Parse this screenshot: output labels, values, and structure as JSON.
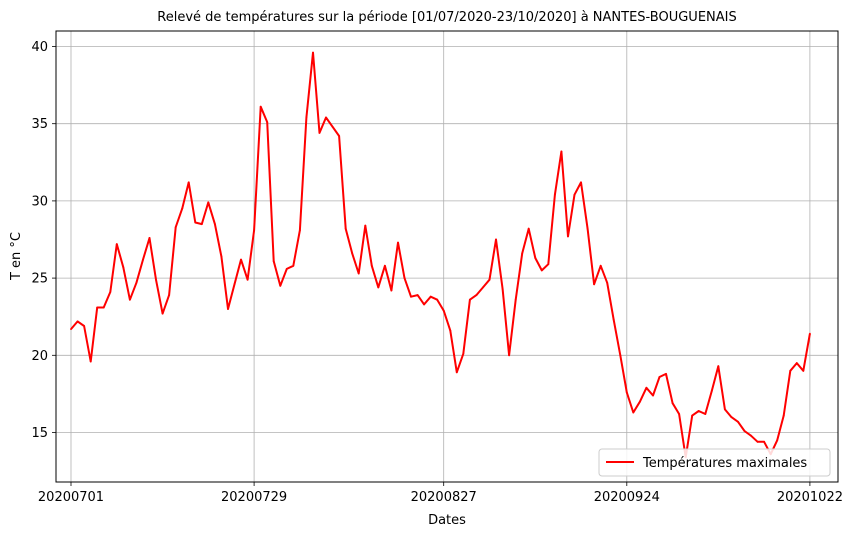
{
  "chart_data": {
    "type": "line",
    "title": "Relevé de températures sur la période [01/07/2020-23/10/2020] à NANTES-BOUGUENAIS",
    "xlabel": "Dates",
    "ylabel": "T en °C",
    "xlim": [
      -2.3,
      117.3
    ],
    "ylim": [
      11.8,
      41.0
    ],
    "grid": true,
    "legend_position": "lower right",
    "x_ticks": [
      {
        "index": 0,
        "label": "20200701"
      },
      {
        "index": 28,
        "label": "20200729"
      },
      {
        "index": 57,
        "label": "20200827"
      },
      {
        "index": 85,
        "label": "20200924"
      },
      {
        "index": 113,
        "label": "20201022"
      }
    ],
    "y_ticks": [
      15,
      20,
      25,
      30,
      35,
      40
    ],
    "series": [
      {
        "name": "Températures maximales",
        "color": "#ff0000",
        "values": [
          21.7,
          22.2,
          21.9,
          19.6,
          23.1,
          23.1,
          24.1,
          27.2,
          25.7,
          23.6,
          24.7,
          26.2,
          27.6,
          24.9,
          22.7,
          23.9,
          28.3,
          29.5,
          31.2,
          28.6,
          28.5,
          29.9,
          28.5,
          26.4,
          23.0,
          24.6,
          26.2,
          24.9,
          28.1,
          36.1,
          35.1,
          26.1,
          24.5,
          25.6,
          25.8,
          28.1,
          35.4,
          39.6,
          34.4,
          35.4,
          34.8,
          34.2,
          28.2,
          26.6,
          25.3,
          28.4,
          25.8,
          24.4,
          25.8,
          24.2,
          27.3,
          25.0,
          23.8,
          23.9,
          23.3,
          23.8,
          23.6,
          22.9,
          21.6,
          18.9,
          20.1,
          23.6,
          23.9,
          24.4,
          24.9,
          27.5,
          24.3,
          20.0,
          23.6,
          26.6,
          28.2,
          26.3,
          25.5,
          25.9,
          30.4,
          33.2,
          27.7,
          30.4,
          31.2,
          28.2,
          24.6,
          25.8,
          24.7,
          22.3,
          20.0,
          17.6,
          16.3,
          17.0,
          17.9,
          17.4,
          18.6,
          18.8,
          16.9,
          16.2,
          13.4,
          16.1,
          16.4,
          16.2,
          17.7,
          19.3,
          16.5,
          16.0,
          15.7,
          15.1,
          14.8,
          14.4,
          14.4,
          13.6,
          14.5,
          16.1,
          19.0,
          19.5,
          19.0,
          21.4
        ]
      }
    ]
  }
}
